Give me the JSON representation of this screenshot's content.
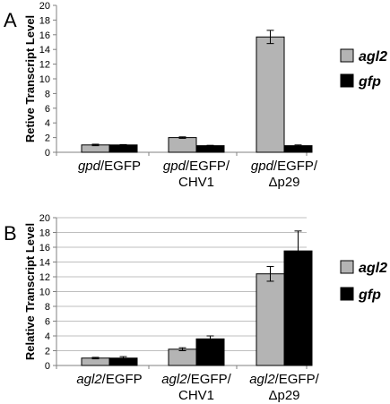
{
  "colors": {
    "agl2": "#b4b4b4",
    "gfp": "#000000"
  },
  "chart_data": [
    {
      "type": "bar",
      "panel_label": "A",
      "ylabel": "Retive Transcript Level",
      "ylim": [
        0,
        20
      ],
      "yticks": [
        "0",
        "2",
        "4",
        "6",
        "8",
        "10",
        "12",
        "14",
        "16",
        "18",
        "20"
      ],
      "grid": false,
      "legend": "right",
      "categories": [
        {
          "italic": "gpd",
          "line1": "/EGFP",
          "line2": ""
        },
        {
          "italic": "gpd",
          "line1": "/EGFP/",
          "line2": "CHV1"
        },
        {
          "italic": "gpd",
          "line1": "/EGFP/",
          "line2": "Δp29"
        }
      ],
      "series": [
        {
          "name": "agl2",
          "values": [
            1.0,
            2.0,
            15.7
          ],
          "errors": [
            0.1,
            0.1,
            0.9
          ]
        },
        {
          "name": "gfp",
          "values": [
            1.0,
            0.9,
            0.9
          ],
          "errors": [
            0.05,
            0.05,
            0.1
          ]
        }
      ]
    },
    {
      "type": "bar",
      "panel_label": "B",
      "ylabel": "Relative Transcript Level",
      "ylim": [
        0,
        20
      ],
      "yticks": [
        "0",
        "2",
        "4",
        "6",
        "8",
        "10",
        "12",
        "14",
        "16",
        "18",
        "20"
      ],
      "grid": true,
      "legend": "right",
      "categories": [
        {
          "italic": "agl2",
          "line1": "/EGFP",
          "line2": ""
        },
        {
          "italic": "agl2",
          "line1": "/EGFP/",
          "line2": "CHV1"
        },
        {
          "italic": "agl2",
          "line1": "/EGFP/",
          "line2": "Δp29"
        }
      ],
      "series": [
        {
          "name": "agl2",
          "values": [
            1.0,
            2.2,
            12.4
          ],
          "errors": [
            0.1,
            0.2,
            1.0
          ]
        },
        {
          "name": "gfp",
          "values": [
            1.0,
            3.6,
            15.5
          ],
          "errors": [
            0.2,
            0.4,
            2.7
          ]
        }
      ]
    }
  ]
}
